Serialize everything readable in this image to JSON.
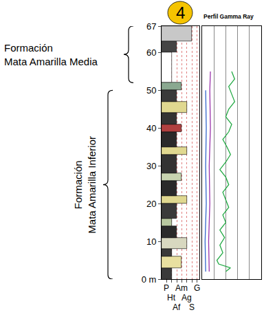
{
  "chart_data": [
    {
      "type": "bar",
      "orientation": "horizontal",
      "panel_label": "4",
      "grid": true,
      "xlim": [
        0,
        7.5
      ],
      "xticks": [
        {
          "value": 1,
          "label": "P"
        },
        {
          "value": 2,
          "label": "Ht"
        },
        {
          "value": 3,
          "label": "Af"
        },
        {
          "value": 4,
          "label": "Am"
        },
        {
          "value": 5,
          "label": "Ag"
        },
        {
          "value": 6,
          "label": "S"
        },
        {
          "value": 7,
          "label": "G"
        }
      ],
      "ylim": [
        0,
        67
      ],
      "yticks": [
        {
          "value": 0,
          "label": "0 m"
        },
        10,
        20,
        30,
        40,
        50,
        60,
        67
      ],
      "formations": [
        {
          "name": "Formación Mata Amarilla Media",
          "from": 52,
          "to": 67
        },
        {
          "name": "Formación Mata Amarilla Inferior",
          "from": 0,
          "to": 50
        }
      ],
      "beds": [
        {
          "from": 0,
          "to": 3,
          "grain": "Ht",
          "color": "#3a3a3a"
        },
        {
          "from": 3,
          "to": 6,
          "grain": "Am",
          "color": "#e8e0a0"
        },
        {
          "from": 6,
          "to": 8,
          "grain": "Ht",
          "color": "#3a3a3a"
        },
        {
          "from": 8,
          "to": 11,
          "grain": "Ag",
          "color": "#d8d8c0"
        },
        {
          "from": 11,
          "to": 14,
          "grain": "Af",
          "color": "#2a2a2a"
        },
        {
          "from": 14,
          "to": 16,
          "grain": "Ht",
          "color": "#b8c8a0"
        },
        {
          "from": 16,
          "to": 20,
          "grain": "Af",
          "color": "#3a3a3a"
        },
        {
          "from": 20,
          "to": 22,
          "grain": "Ag",
          "color": "#e0d890"
        },
        {
          "from": 22,
          "to": 26,
          "grain": "Af",
          "color": "#2a2a2a"
        },
        {
          "from": 26,
          "to": 28,
          "grain": "Am",
          "color": "#c8d4b0"
        },
        {
          "from": 28,
          "to": 33,
          "grain": "Af",
          "color": "#333333"
        },
        {
          "from": 33,
          "to": 35,
          "grain": "Ag",
          "color": "#e0d890"
        },
        {
          "from": 35,
          "to": 39,
          "grain": "Af",
          "color": "#2a2a2a"
        },
        {
          "from": 39,
          "to": 41,
          "grain": "Am",
          "color": "#b04040"
        },
        {
          "from": 41,
          "to": 44,
          "grain": "Af",
          "color": "#333333"
        },
        {
          "from": 44,
          "to": 47,
          "grain": "Ag",
          "color": "#e0d890"
        },
        {
          "from": 47,
          "to": 50,
          "grain": "Af",
          "color": "#3a3a3a"
        },
        {
          "from": 50,
          "to": 52,
          "grain": "Am",
          "color": "#8aa890"
        },
        {
          "from": 52,
          "to": 60,
          "grain": "Ht",
          "color": "#ffffff"
        },
        {
          "from": 60,
          "to": 63,
          "grain": "Af",
          "color": "#444444"
        },
        {
          "from": 63,
          "to": 67,
          "grain": "S",
          "color": "#c8c8c8"
        }
      ]
    },
    {
      "type": "line",
      "title": "Perfil Gamma Ray",
      "grid": true,
      "tick_labels": false,
      "xlim": [
        0,
        100
      ],
      "xticks": [
        20,
        40,
        60,
        80
      ],
      "ylim": [
        0,
        67
      ],
      "series": [
        {
          "color": "#22aa44",
          "depths": [
            2,
            3,
            4,
            5,
            7,
            9,
            11,
            13,
            15,
            17,
            19,
            21,
            23,
            25,
            27,
            29,
            31,
            33,
            35,
            37,
            39,
            41,
            43,
            45,
            47,
            49,
            51,
            53,
            55
          ],
          "values": [
            40,
            48,
            28,
            25,
            35,
            30,
            38,
            30,
            40,
            35,
            45,
            40,
            35,
            45,
            40,
            30,
            40,
            48,
            42,
            35,
            45,
            50,
            40,
            45,
            55,
            50,
            45,
            55,
            50
          ]
        },
        {
          "color": "#9933aa",
          "depths": [
            2,
            10,
            20,
            30,
            40,
            50,
            55
          ],
          "values": [
            12,
            11,
            13,
            12,
            14,
            13,
            14
          ]
        },
        {
          "color": "#3366cc",
          "depths": [
            2,
            10,
            20,
            30,
            40,
            50
          ],
          "values": [
            6,
            5,
            7,
            6,
            7,
            6
          ]
        }
      ]
    }
  ]
}
